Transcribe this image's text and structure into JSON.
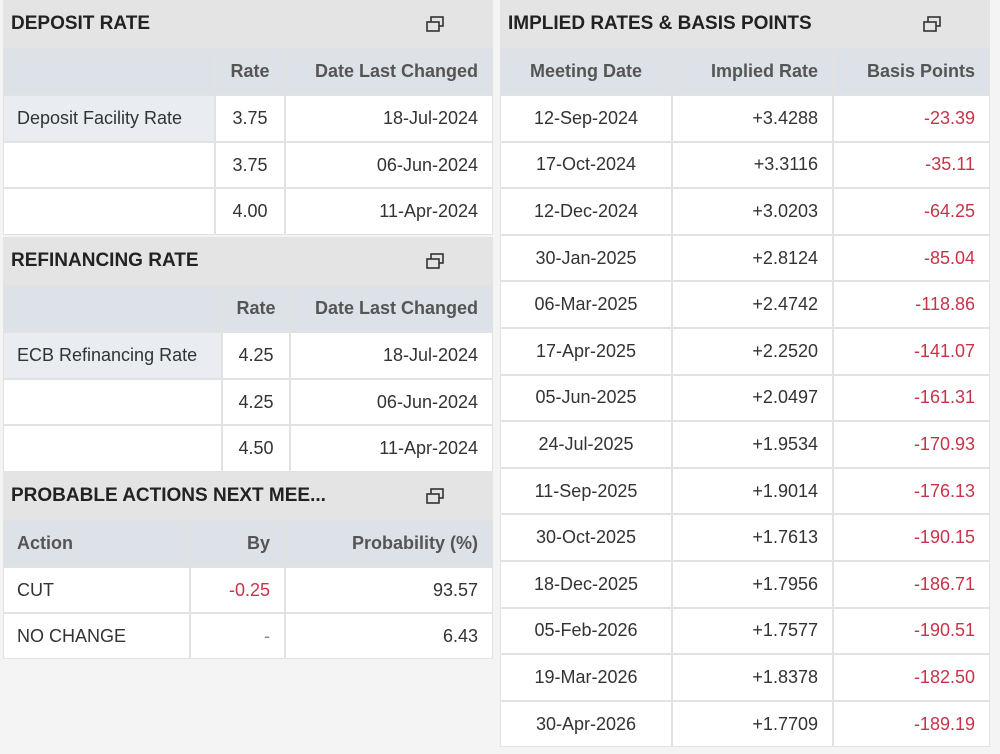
{
  "deposit_rate": {
    "title": "DEPOSIT RATE",
    "columns": [
      "Rate",
      "Date Last Changed"
    ],
    "rows": [
      {
        "name": "Deposit Facility Rate",
        "rate": "3.75",
        "date": "18-Jul-2024"
      },
      {
        "rate": "3.75",
        "date": "06-Jun-2024"
      },
      {
        "rate": "4.00",
        "date": "11-Apr-2024"
      }
    ]
  },
  "refinancing_rate": {
    "title": "REFINANCING RATE",
    "columns": [
      "Rate",
      "Date Last Changed"
    ],
    "rows": [
      {
        "name": "ECB Refinancing Rate",
        "rate": "4.25",
        "date": "18-Jul-2024"
      },
      {
        "rate": "4.25",
        "date": "06-Jun-2024"
      },
      {
        "rate": "4.50",
        "date": "11-Apr-2024"
      }
    ]
  },
  "probable_actions": {
    "title": "PROBABLE ACTIONS NEXT MEE...",
    "columns": [
      "Action",
      "By",
      "Probability (%)"
    ],
    "rows": [
      {
        "name": "CUT",
        "by": "-0.25",
        "prob": "93.57"
      },
      {
        "name": "NO CHANGE",
        "by": "-",
        "prob": "6.43"
      }
    ]
  },
  "implied_rates": {
    "title": "IMPLIED RATES & BASIS POINTS",
    "columns": [
      "Meeting Date",
      "Implied Rate",
      "Basis Points"
    ],
    "rows": [
      {
        "date": "12-Sep-2024",
        "rate": "+3.4288",
        "bp": "-23.39"
      },
      {
        "date": "17-Oct-2024",
        "rate": "+3.3116",
        "bp": "-35.11"
      },
      {
        "date": "12-Dec-2024",
        "rate": "+3.0203",
        "bp": "-64.25"
      },
      {
        "date": "30-Jan-2025",
        "rate": "+2.8124",
        "bp": "-85.04"
      },
      {
        "date": "06-Mar-2025",
        "rate": "+2.4742",
        "bp": "-118.86"
      },
      {
        "date": "17-Apr-2025",
        "rate": "+2.2520",
        "bp": "-141.07"
      },
      {
        "date": "05-Jun-2025",
        "rate": "+2.0497",
        "bp": "-161.31"
      },
      {
        "date": "24-Jul-2025",
        "rate": "+1.9534",
        "bp": "-170.93"
      },
      {
        "date": "11-Sep-2025",
        "rate": "+1.9014",
        "bp": "-176.13"
      },
      {
        "date": "30-Oct-2025",
        "rate": "+1.7613",
        "bp": "-190.15"
      },
      {
        "date": "18-Dec-2025",
        "rate": "+1.7956",
        "bp": "-186.71"
      },
      {
        "date": "05-Feb-2026",
        "rate": "+1.7577",
        "bp": "-190.51"
      },
      {
        "date": "19-Mar-2026",
        "rate": "+1.8378",
        "bp": "-182.50"
      },
      {
        "date": "30-Apr-2026",
        "rate": "+1.7709",
        "bp": "-189.19"
      }
    ]
  }
}
